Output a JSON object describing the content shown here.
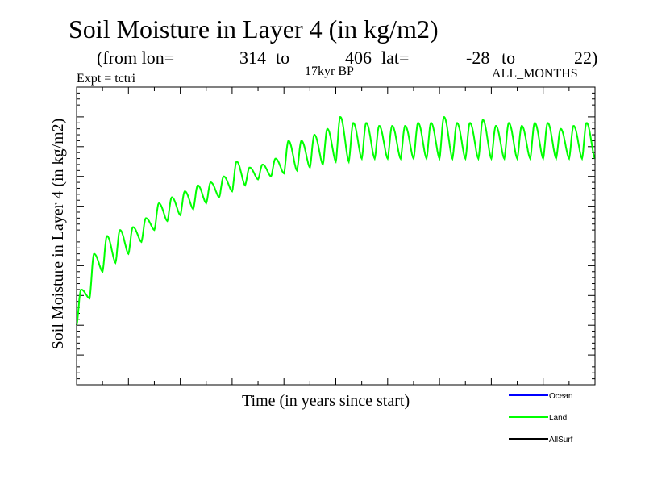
{
  "chart_data": {
    "type": "line",
    "title": "Soil Moisture in Layer 4 (in kg/m2)",
    "subtitle": {
      "from_lon_label": "(from lon=",
      "lon_start": "314",
      "to1": "to",
      "lon_end": "406",
      "lat_label": "lat=",
      "lat_start": "-28",
      "to2": "to",
      "lat_end": "22)"
    },
    "experiment": "Expt = tctri",
    "period": "17kyr BP",
    "months": "ALL_MONTHS",
    "xlabel": "Time (in years since start)",
    "ylabel": "Soil Moisture in Layer 4 (in kg/m2)",
    "xlim": [
      0,
      40
    ],
    "ylim": [
      0,
      100
    ],
    "seasonal_cycle": {
      "cycles": 40,
      "peak_fraction": 0.35,
      "shape_exponent": 1.6
    },
    "series": [
      {
        "name": "Land",
        "color": "#00ff00",
        "trough": [
          20,
          29,
          38,
          41,
          44,
          48,
          52,
          55,
          57,
          59,
          61,
          63,
          65,
          67,
          69,
          70,
          71,
          72,
          73,
          74,
          75,
          75,
          76,
          76,
          76,
          76,
          76,
          76,
          76,
          76,
          76,
          76,
          76,
          76,
          76,
          76,
          76,
          76,
          76,
          76
        ],
        "peak": [
          32,
          44,
          50,
          52,
          53,
          56,
          61,
          63,
          65,
          67,
          68,
          70,
          75,
          73,
          74,
          76,
          82,
          82,
          84,
          86,
          90,
          88,
          88,
          87,
          87,
          87,
          88,
          88,
          90,
          88,
          88,
          89,
          87,
          88,
          87,
          88,
          88,
          86,
          87,
          88
        ],
        "final": 76
      },
      {
        "name": "Ocean",
        "color": "#0000ff",
        "trough": [],
        "peak": []
      },
      {
        "name": "AllSurf",
        "color": "#000000",
        "trough": [],
        "peak": []
      }
    ],
    "legend": [
      {
        "label": "Ocean",
        "color": "#0000ff"
      },
      {
        "label": "Land",
        "color": "#00ff00"
      },
      {
        "label": "AllSurf",
        "color": "#000000"
      }
    ]
  }
}
